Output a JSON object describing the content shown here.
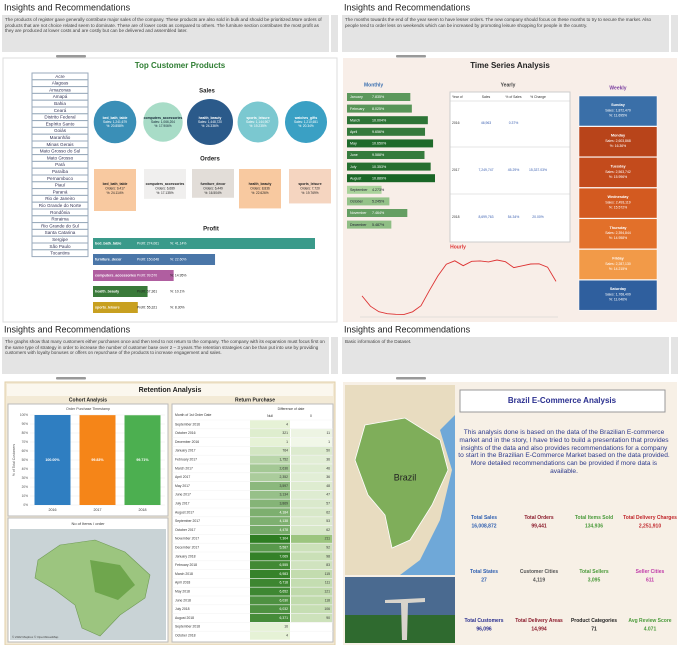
{
  "panels": [
    {
      "header": "Insights and Recommendations",
      "note": "The products of register gave generally contribute major sales of the company. These products are also sold in bulk and should be prioritized.More orders of products that are not choice related seem to dominate. These are of lower costs as compared to others. The furniture section contributes the most profit as they are produced at lower costs and are costly but can be delivered and assembled later.",
      "dashboard": {
        "title": "Top Customer Products",
        "states": [
          "Acre",
          "Alagoas",
          "Amazonas",
          "Amapá",
          "Bahia",
          "Ceará",
          "Distrito Federal",
          "Espírito Santo",
          "Goiás",
          "Maranhão",
          "Minas Gerais",
          "Mato Grosso do Sul",
          "Mato Grosso",
          "Pará",
          "Paraíba",
          "Pernambuco",
          "Piauí",
          "Paraná",
          "Rio de Janeiro",
          "Rio Grande do Norte",
          "Rondônia",
          "Roraima",
          "Rio Grande do Sul",
          "Santa Catarina",
          "Sergipe",
          "São Paulo",
          "Tocantins"
        ],
        "sales": {
          "title": "Sales",
          "items": [
            {
              "name": "bed_bath_table",
              "value": 1241679,
              "value_label": "Sales: 1,241,679",
              "pct_label": "%: 20.858%",
              "color": "#3a8fb7"
            },
            {
              "name": "computers_accessories",
              "value": 1066204,
              "value_label": "Sales: 1,066,204",
              "pct_label": "%: 17.906%",
              "color": "#a8dcc7"
            },
            {
              "name": "health_beauty",
              "value": 1448720,
              "value_label": "Sales: 1,448,720",
              "pct_label": "%: 24.336%",
              "color": "#2b5a8a"
            },
            {
              "name": "sports_leisure",
              "value": 1144907,
              "value_label": "Sales: 1,144,907",
              "pct_label": "%: 19.235%",
              "color": "#7bc8d0"
            },
            {
              "name": "watches_gifts",
              "value": 1210651,
              "value_label": "Sales: 1,210,651",
              "pct_label": "%: 20.34%",
              "color": "#3aa0c4"
            }
          ]
        },
        "orders": {
          "title": "Orders",
          "items": [
            {
              "name": "bed_bath_table",
              "value": 9417,
              "value_label": "Orders: 9,417",
              "pct_label": "%: 24.114%",
              "color": "#f8c9a0"
            },
            {
              "name": "computers_accessories",
              "value": 6689,
              "value_label": "Orders: 6,689",
              "pct_label": "%: 17.135%",
              "color": "#f0efee"
            },
            {
              "name": "furniture_decor",
              "value": 6449,
              "value_label": "Orders: 6,449",
              "pct_label": "%: 16.504%",
              "color": "#e2ddd8"
            },
            {
              "name": "health_beauty",
              "value": 8836,
              "value_label": "Orders: 8,836",
              "pct_label": "%: 22.626%",
              "color": "#f8c9a0"
            },
            {
              "name": "sports_leisure",
              "value": 7720,
              "value_label": "Orders: 7,720",
              "pct_label": "%: 19.769%",
              "color": "#f5d5c0"
            }
          ]
        },
        "profit": {
          "title": "Profit",
          "items": [
            {
              "name": "bed_bath_table",
              "value": 274061,
              "value_label": "Profit: 274,061",
              "pct_label": "%: 41.14%",
              "color": "#3a9a8a"
            },
            {
              "name": "furniture_decor",
              "value": 150648,
              "value_label": "Profit: 150,648",
              "pct_label": "%: 22.60%",
              "color": "#4a76a8"
            },
            {
              "name": "computers_accessories",
              "value": 99570,
              "value_label": "Profit: 99,570",
              "pct_label": "%: 14.95%",
              "color": "#b05ea0"
            },
            {
              "name": "health_beauty",
              "value": 67361,
              "value_label": "Profit: 67,361",
              "pct_label": "%: 10.1%",
              "color": "#3a7a3a"
            },
            {
              "name": "sports_leisure",
              "value": 55321,
              "value_label": "Profit: 55,321",
              "pct_label": "%: 8.30%",
              "color": "#c8a020"
            }
          ]
        }
      }
    },
    {
      "header": "Insights and Recommendations",
      "note": "The months towards the end of the year seem to have lesser orders. The new company should focus on these months to try to secure the market. Also people tend to order less on weekends which can be increased by promoting leisure shopping for people in the country.",
      "dashboard": {
        "title": "Time Series Analysis",
        "monthly": {
          "title": "Monthly",
          "items": [
            {
              "name": "January",
              "value": 7.835,
              "value_label": "7.835%"
            },
            {
              "name": "February",
              "value": 8.025,
              "value_label": "8.025%"
            },
            {
              "name": "March",
              "value": 10.004,
              "value_label": "10.004%"
            },
            {
              "name": "April",
              "value": 9.656,
              "value_label": "9.656%"
            },
            {
              "name": "May",
              "value": 10.65,
              "value_label": "10.650%"
            },
            {
              "name": "June",
              "value": 9.588,
              "value_label": "9.588%"
            },
            {
              "name": "July",
              "value": 10.353,
              "value_label": "10.353%"
            },
            {
              "name": "August",
              "value": 10.889,
              "value_label": "10.889%"
            },
            {
              "name": "September",
              "value": 4.273,
              "value_label": "4.273%"
            },
            {
              "name": "October",
              "value": 5.245,
              "value_label": "5.245%"
            },
            {
              "name": "November",
              "value": 7.464,
              "value_label": "7.464%"
            },
            {
              "name": "December",
              "value": 5.487,
              "value_label": "5.487%"
            }
          ]
        },
        "yearly": {
          "title": "Yearly",
          "columns": [
            "Year of",
            "Sales",
            "% of Sales",
            "% Change"
          ],
          "rows": [
            [
              "2016",
              "46,963",
              "0.37%",
              null
            ],
            [
              "2017",
              "7,249,747",
              "45.29%",
              "15,337.03%"
            ],
            [
              "2018",
              "8,699,763",
              "54.34%",
              "20.00%"
            ]
          ]
        },
        "hourly": {
          "title": "Hourly",
          "x": [
            0,
            1,
            2,
            3,
            4,
            5,
            6,
            7,
            8,
            9,
            10,
            11,
            12,
            13,
            14,
            15,
            16,
            17,
            18,
            19,
            20,
            21,
            22,
            23
          ],
          "values": [
            2394,
            1170,
            510,
            272,
            206,
            188,
            502,
            1231,
            3064,
            4785,
            6177,
            6578,
            5995,
            6518,
            6569,
            6454,
            6675,
            6473,
            5769,
            5982,
            6193,
            6217,
            5816,
            4123
          ]
        },
        "weekly": {
          "title": "Weekly",
          "items": [
            {
              "name": "Sunday",
              "value_label": "Sales: 1,872,470",
              "pct_label": "%: 11.695%",
              "color": "#3a6fa8"
            },
            {
              "name": "Monday",
              "value_label": "Sales: 2,603,868",
              "pct_label": "%: 16.36%",
              "color": "#b8441a"
            },
            {
              "name": "Tuesday",
              "value_label": "Sales: 2,563,742",
              "pct_label": "%: 15.996%",
              "color": "#c34b1c"
            },
            {
              "name": "Wednesday",
              "value_label": "Sales: 2,493,119",
              "pct_label": "%: 15.572%",
              "color": "#d35a20"
            },
            {
              "name": "Thursday",
              "value_label": "Sales: 2,394,844",
              "pct_label": "%: 14.958%",
              "color": "#e2702a"
            },
            {
              "name": "Friday",
              "value_label": "Sales: 2,287,130",
              "pct_label": "%: 14.215%",
              "color": "#f29a48"
            },
            {
              "name": "Saturday",
              "value_label": "Sales: 1,768,409",
              "pct_label": "%: 11.046%",
              "color": "#2f5f9e"
            }
          ]
        }
      }
    },
    {
      "header": "Insights and Recommendations",
      "note": "The graphs show that many customers either purchases once and then tend to not return to the company. The company with its expansion must focus first on the same type of strategy in order to increase the number of customer base over 2 – 3 years.The retention strategies can be than put into use by providing customers with loyalty bonuses or offers on repurchase of the products to increase engagement and sales.",
      "dashboard": {
        "title": "Retention Analysis",
        "cohort": {
          "title": "Cohort Analysis",
          "subtitle": "Order Purchase Timestamp",
          "y_label": "% of Total Customers",
          "categories": [
            "2016",
            "2017",
            "2018"
          ],
          "values": [
            100,
            99.83,
            99.71
          ],
          "value_labels": [
            "100.00%",
            "99.83%",
            "99.71%"
          ],
          "colors": [
            "#2f7ec1",
            "#f58518",
            "#4caf50"
          ],
          "ylim": [
            0,
            100
          ],
          "yticks": [
            {
              "value": 0,
              "label": "0%"
            },
            {
              "value": 10,
              "label": "10%"
            },
            {
              "value": 20,
              "label": "20%"
            },
            {
              "value": 30,
              "label": "30%"
            },
            {
              "value": 40,
              "label": "40%"
            },
            {
              "value": 50,
              "label": "50%"
            },
            {
              "value": 60,
              "label": "60%"
            },
            {
              "value": 70,
              "label": "70%"
            },
            {
              "value": 80,
              "label": "80%"
            },
            {
              "value": 90,
              "label": "90%"
            },
            {
              "value": 100,
              "label": "100%"
            }
          ]
        },
        "map": {
          "title": "No of Items / order",
          "credit": "© 2022 Mapbox © OpenStreetMap"
        },
        "table": {
          "title": "Return Purchase",
          "group": "Difference of date",
          "columns": [
            "Month of 1st Order Date",
            "Null",
            "0"
          ],
          "rows": [
            [
              "September 2016",
              "4",
              null
            ],
            [
              "October 2016",
              "321",
              "11"
            ],
            [
              "December 2016",
              "1",
              "1"
            ],
            [
              "January 2017",
              "764",
              "50"
            ],
            [
              "February 2017",
              "1,752",
              "36"
            ],
            [
              "March 2017",
              "2,636",
              "46"
            ],
            [
              "April 2017",
              "2,352",
              "36"
            ],
            [
              "May 2017",
              "3,597",
              "48"
            ],
            [
              "June 2017",
              "3,134",
              "47"
            ],
            [
              "July 2017",
              "3,869",
              "57"
            ],
            [
              "August 2017",
              "4,184",
              "62"
            ],
            [
              "September 2017",
              "4,138",
              "53"
            ],
            [
              "October 2017",
              "4,478",
              "62"
            ],
            [
              "November 2017",
              "7,304",
              "211"
            ],
            [
              "December 2017",
              "5,587",
              "92"
            ],
            [
              "January 2018",
              "7,069",
              "98"
            ],
            [
              "February 2018",
              "6,555",
              "83"
            ],
            [
              "March 2018",
              "6,983",
              "115"
            ],
            [
              "April 2018",
              "6,718",
              "111"
            ],
            [
              "May 2018",
              "6,652",
              "121"
            ],
            [
              "June 2018",
              "6,030",
              "118"
            ],
            [
              "July 2018",
              "6,032",
              "106"
            ],
            [
              "August 2018",
              "6,371",
              "90"
            ],
            [
              "September 2018",
              "16",
              null
            ],
            [
              "October 2018",
              "4",
              null
            ]
          ]
        }
      }
    },
    {
      "header": "Insights and Recommendations",
      "note": "Basic information of the Dataset.",
      "dashboard": {
        "title": "Brazil E-Commerce Analysis",
        "map_label": "Brazil",
        "text": "This analysis done is based on the data of the Brazilian E-commerce market and in the story, I have tried to build a presentation that provides insights of the data and also provides recommendations for a company to start in the Brazilian E-Commerce Market based on the data provided. More detailed recommendations can be provided if more data is available.",
        "kpis": [
          {
            "label": "Total Sales",
            "value": "16,008,872",
            "color": "#2f5fb0"
          },
          {
            "label": "Total Orders",
            "value": "99,441",
            "color": "#8b1a2b"
          },
          {
            "label": "Total Items Sold",
            "value": "134,936",
            "color": "#4a9a3a"
          },
          {
            "label": "Total Delivery Charges",
            "value": "2,251,910",
            "color": "#c0262b"
          },
          {
            "label": "Total States",
            "value": "27",
            "color": "#2f5fb0"
          },
          {
            "label": "Customer Cities",
            "value": "4,119",
            "color": "#555555"
          },
          {
            "label": "Total Sellers",
            "value": "3,095",
            "color": "#4a9a3a"
          },
          {
            "label": "Seller Cities",
            "value": "611",
            "color": "#c03aa8"
          },
          {
            "label": "Total Customers",
            "value": "96,096",
            "color": "#2a2f8f"
          },
          {
            "label": "Total Delivery Areas",
            "value": "14,994",
            "color": "#8b1a2b"
          },
          {
            "label": "Product Categories",
            "value": "71",
            "color": "#222222"
          },
          {
            "label": "Avg Review Score",
            "value": "4.071",
            "color": "#4a9a3a"
          }
        ]
      }
    }
  ]
}
